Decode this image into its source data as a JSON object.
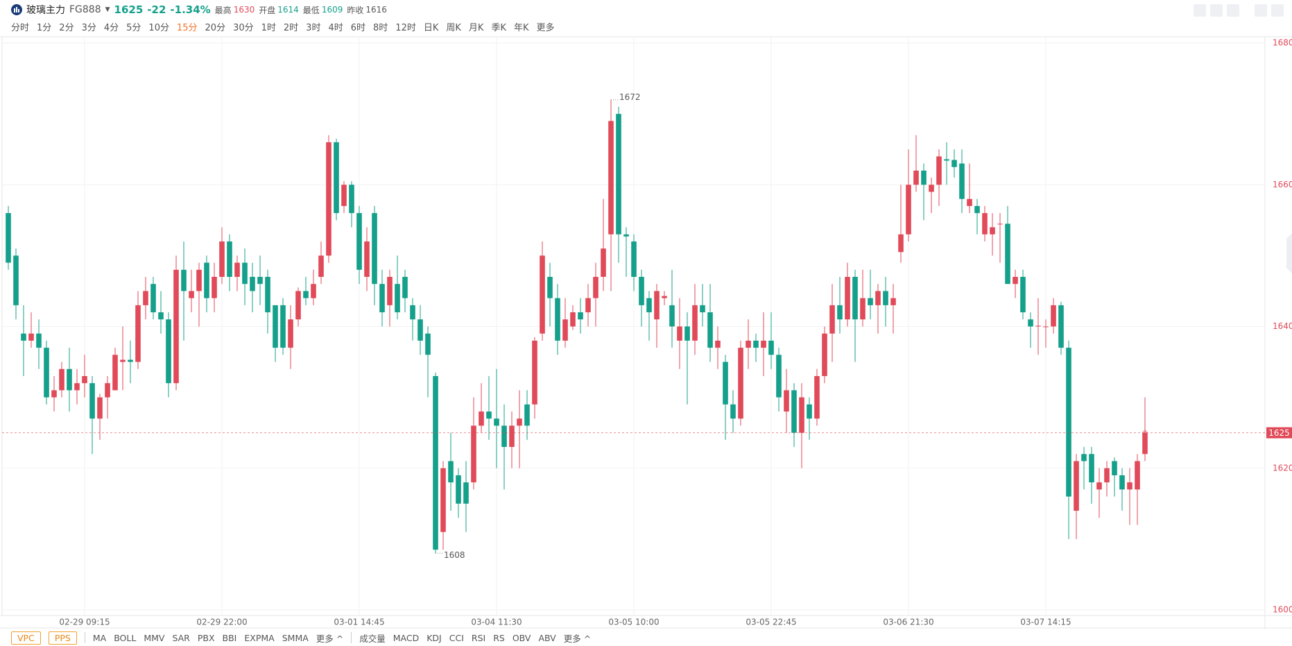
{
  "header": {
    "name": "玻璃主力",
    "code": "FG888",
    "price": "1625",
    "change": "-22",
    "change_pct": "-1.34%",
    "color": "#14a08a",
    "stats": [
      {
        "label": "最高",
        "value": "1630",
        "color": "#e04a59"
      },
      {
        "label": "开盘",
        "value": "1614",
        "color": "#14a08a"
      },
      {
        "label": "最低",
        "value": "1609",
        "color": "#14a08a"
      },
      {
        "label": "昨收",
        "value": "1616",
        "color": "#555555"
      }
    ]
  },
  "timeframes": {
    "items": [
      "分时",
      "1分",
      "2分",
      "3分",
      "4分",
      "5分",
      "10分",
      "15分",
      "20分",
      "30分",
      "1时",
      "2时",
      "3时",
      "4时",
      "6时",
      "8时",
      "12时",
      "日K",
      "周K",
      "月K",
      "季K",
      "年K",
      "更多"
    ],
    "active_index": 7,
    "active_color": "#f5732a"
  },
  "indicators": {
    "main_boxed": [
      "VPC",
      "PPS"
    ],
    "main": [
      "MA",
      "BOLL",
      "MMV",
      "SAR",
      "PBX",
      "BBI",
      "EXPMA",
      "SMMA",
      "更多 ^"
    ],
    "sub": [
      "成交量",
      "MACD",
      "KDJ",
      "CCI",
      "RSI",
      "RS",
      "OBV",
      "ABV",
      "更多 ^"
    ]
  },
  "chart_data": {
    "type": "candlestick",
    "up_color": "#e04a59",
    "down_color": "#14a08a",
    "axis_color": "#e04a59",
    "grid": true,
    "ylim": [
      1600,
      1680
    ],
    "yticks": [
      1600,
      1620,
      1640,
      1660,
      1680
    ],
    "last_price": 1625,
    "high_marker": 1672,
    "low_marker": 1608,
    "categories": [
      null,
      null,
      null,
      null,
      null,
      null,
      null,
      null,
      null,
      null,
      "02-29 09:15",
      null,
      null,
      null,
      null,
      null,
      null,
      null,
      null,
      null,
      null,
      null,
      null,
      null,
      null,
      null,
      null,
      null,
      "02-29 22:00",
      null,
      null,
      null,
      null,
      null,
      null,
      null,
      null,
      null,
      null,
      null,
      null,
      null,
      null,
      null,
      null,
      null,
      "03-01 14:45",
      null,
      null,
      null,
      null,
      null,
      null,
      null,
      null,
      null,
      null,
      null,
      null,
      null,
      null,
      null,
      null,
      null,
      "03-04 11:30",
      null,
      null,
      null,
      null,
      null,
      null,
      null,
      null,
      null,
      null,
      null,
      null,
      null,
      null,
      null,
      null,
      null,
      "03-05 10:00",
      null,
      null,
      null,
      null,
      null,
      null,
      null,
      null,
      null,
      null,
      null,
      null,
      null,
      null,
      null,
      null,
      null,
      "03-05 22:45",
      null,
      null,
      null,
      null,
      null,
      null,
      null,
      null,
      null,
      null,
      null,
      null,
      null,
      null,
      null,
      null,
      null,
      "03-06 21:30",
      null,
      null,
      null,
      null,
      null,
      null,
      null,
      null,
      null,
      null,
      null,
      null,
      null,
      null,
      null,
      null,
      null,
      "03-07 14:15",
      null,
      null,
      null,
      null,
      null,
      null,
      null,
      null,
      null,
      null,
      null,
      null,
      null
    ],
    "open": [
      1656,
      1650,
      1639,
      1638,
      1639,
      1637,
      1630,
      1631,
      1634,
      1631,
      1632,
      1632,
      1627,
      1630,
      1631,
      1635,
      1635.3,
      1635,
      1643,
      1646,
      1642,
      1641,
      1632,
      1648,
      1644,
      1645,
      1649,
      1644,
      1647,
      1652,
      1647,
      1649,
      1647,
      1647,
      1647,
      1643,
      1643,
      1637,
      1641,
      1645,
      1644,
      1647,
      1650,
      1666,
      1657,
      1660,
      1656,
      1647,
      1656,
      1646,
      1643,
      1646,
      1647,
      1643,
      1641,
      1639,
      1633,
      1611,
      1621,
      1619,
      1618,
      1618,
      1626,
      1628,
      1627,
      1626,
      1623,
      1626,
      1629,
      1629,
      1639,
      1647,
      1644,
      1638,
      1640,
      1642,
      1642,
      1644,
      1647,
      1653,
      1670,
      1653,
      1652,
      1647,
      1644,
      1641,
      1644,
      1643,
      1638,
      1640,
      1638,
      1643,
      1642,
      1637,
      1635,
      1629,
      1627,
      1637,
      1638,
      1637,
      1638,
      1636,
      1628,
      1631,
      1625,
      1629,
      1627,
      1633,
      1639,
      1643,
      1641,
      1647,
      1641,
      1644,
      1643,
      1645,
      1643,
      1650.5,
      1653,
      1660,
      1662,
      1659,
      1660,
      1663.6,
      1663.5,
      1663,
      1657,
      1657,
      1653,
      1653,
      1654.4,
      1654.5,
      1646,
      1647,
      1641,
      1640,
      1640,
      1640,
      1643,
      1637,
      1614,
      1622,
      1622,
      1617,
      1618,
      1621,
      1619,
      1617,
      1617,
      1622
    ],
    "high": [
      1657,
      1651,
      1643,
      1642,
      1641,
      1638,
      1633,
      1635,
      1637,
      1634,
      1636,
      1633,
      1630.5,
      1633,
      1637,
      1640,
      1638,
      1645,
      1647,
      1647,
      1645,
      1642,
      1650,
      1652,
      1648,
      1649,
      1650,
      1649,
      1654,
      1653,
      1650,
      1651,
      1649,
      1650,
      1648,
      1643,
      1644,
      1643,
      1645.5,
      1647,
      1648,
      1652,
      1667,
      1666.5,
      1660.5,
      1660.5,
      1657,
      1654,
      1657,
      1648,
      1648,
      1650,
      1648,
      1644,
      1643,
      1640,
      1633.5,
      1621,
      1625,
      1620,
      1621,
      1630,
      1632,
      1633,
      1634,
      1629,
      1628,
      1631,
      1631,
      1638.5,
      1652,
      1649,
      1646,
      1644,
      1643,
      1644,
      1646,
      1649,
      1658,
      1672,
      1671,
      1654,
      1653,
      1648,
      1645,
      1646,
      1645,
      1648,
      1644,
      1642,
      1646,
      1646,
      1646,
      1640,
      1636,
      1631,
      1638,
      1641,
      1639,
      1642,
      1642,
      1637,
      1634,
      1632,
      1632,
      1630,
      1634,
      1640,
      1646,
      1647,
      1649,
      1648,
      1648,
      1648,
      1646,
      1647,
      1646,
      1660,
      1665,
      1667,
      1663,
      1661,
      1665,
      1666,
      1665,
      1665,
      1663,
      1658,
      1657,
      1656,
      1656,
      1657,
      1648,
      1648,
      1642,
      1644,
      1641,
      1644,
      1643.5,
      1638,
      1622,
      1623,
      1623,
      1620,
      1621,
      1621.5,
      1620,
      1620,
      1622,
      1630
    ],
    "low": [
      1648,
      1641,
      1633,
      1637,
      1634,
      1629,
      1628,
      1630,
      1628,
      1629,
      1630,
      1622,
      1624,
      1627,
      1631,
      1631,
      1632,
      1634,
      1641,
      1641,
      1639,
      1630,
      1631,
      1638,
      1642,
      1640,
      1642,
      1642,
      1646,
      1645,
      1645,
      1643,
      1642,
      1643,
      1639,
      1635,
      1636,
      1634,
      1640,
      1643,
      1643,
      1646,
      1649,
      1655,
      1656,
      1654,
      1646,
      1645,
      1643,
      1640,
      1640,
      1641,
      1642,
      1638,
      1636,
      1630,
      1608,
      1608.5,
      1614,
      1613,
      1611,
      1617,
      1625,
      1624,
      1620,
      1617,
      1620,
      1620,
      1624,
      1627,
      1638,
      1640,
      1636,
      1637,
      1639.5,
      1639,
      1640,
      1640,
      1645,
      1645,
      1649,
      1647,
      1645,
      1640,
      1638,
      1637,
      1643,
      1637,
      1634,
      1629,
      1636,
      1640,
      1635,
      1634,
      1624,
      1625,
      1626,
      1634,
      1635,
      1633,
      1634,
      1628,
      1625,
      1623,
      1620,
      1624,
      1626,
      1632,
      1635,
      1639,
      1640,
      1635,
      1640,
      1641,
      1639,
      1640,
      1639,
      1649,
      1652,
      1659,
      1655,
      1656,
      1657,
      1660,
      1661,
      1656,
      1656,
      1653,
      1652,
      1650,
      1649,
      1646,
      1644,
      1641,
      1637,
      1636,
      1637,
      1639,
      1636,
      1610,
      1610,
      1617,
      1615,
      1613,
      1616,
      1616,
      1614,
      1612,
      1612,
      1621
    ],
    "close": [
      1649,
      1643,
      1638,
      1639,
      1637,
      1630,
      1631,
      1634,
      1631,
      1632,
      1633,
      1627,
      1630,
      1632,
      1636,
      1635.3,
      1635,
      1643,
      1645,
      1642,
      1641,
      1632,
      1648,
      1645,
      1645,
      1648,
      1644,
      1647,
      1652,
      1647,
      1649,
      1646,
      1645,
      1646,
      1642,
      1637,
      1637,
      1641,
      1645,
      1644,
      1646,
      1650,
      1666,
      1656,
      1660,
      1656,
      1648,
      1652,
      1646,
      1642,
      1647,
      1642,
      1644,
      1641,
      1638,
      1636,
      1608.5,
      1620,
      1618,
      1615,
      1615,
      1626,
      1628,
      1627,
      1626,
      1623,
      1626,
      1627,
      1626,
      1638,
      1650,
      1644,
      1638,
      1641,
      1642,
      1641,
      1644,
      1647,
      1651,
      1669,
      1653,
      1652.7,
      1647,
      1643,
      1642,
      1645,
      1644.3,
      1640,
      1640,
      1638,
      1643,
      1642,
      1637,
      1638,
      1629,
      1627,
      1637,
      1638,
      1637,
      1638,
      1636,
      1630,
      1631,
      1625,
      1630,
      1627,
      1633,
      1639,
      1643,
      1641,
      1647,
      1641,
      1644,
      1643,
      1645,
      1643,
      1644,
      1653,
      1660,
      1662,
      1660,
      1660,
      1664,
      1663.4,
      1662.5,
      1658,
      1658,
      1656,
      1656,
      1654,
      1654.5,
      1646,
      1647,
      1642,
      1640,
      1640.1,
      1640,
      1643,
      1637,
      1616,
      1621,
      1621,
      1618,
      1618,
      1620,
      1619,
      1617,
      1618,
      1621,
      1625
    ]
  }
}
